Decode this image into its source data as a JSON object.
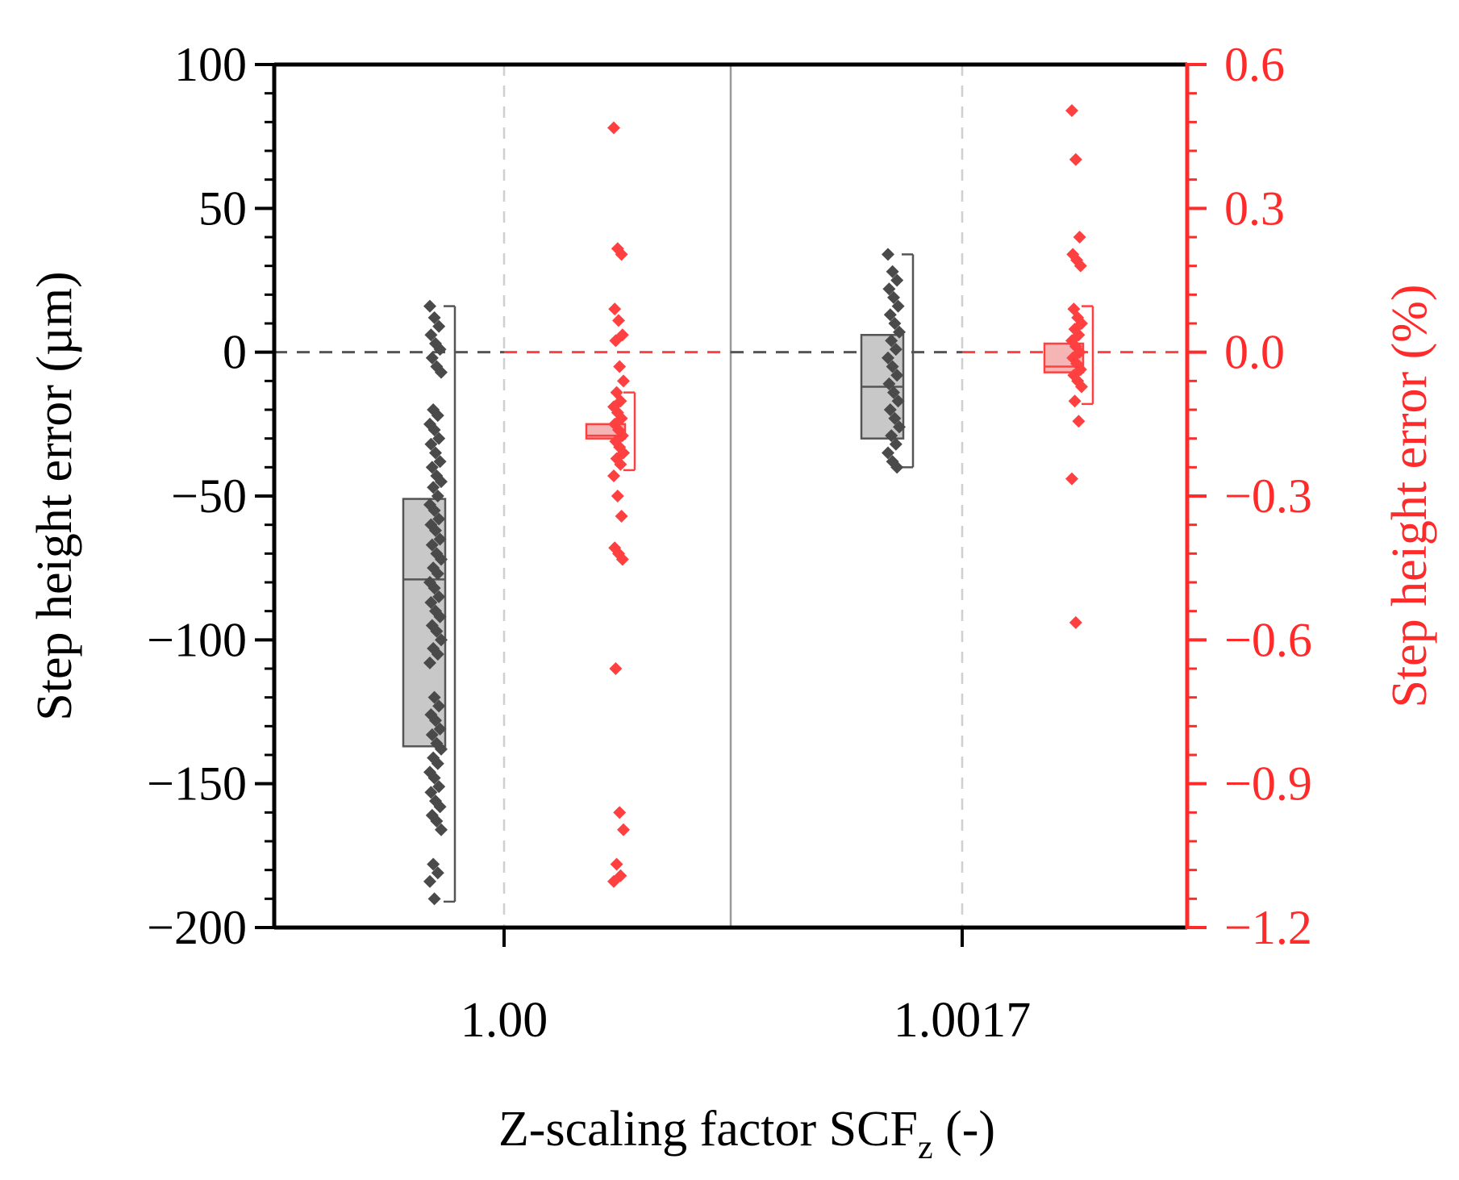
{
  "chart_data": {
    "type": "box-scatter",
    "title": "",
    "xlabel": {
      "main": "Z-scaling factor SCF",
      "sub": "z",
      "suffix": " (-)"
    },
    "ylabel_left": "Step height error (µm)",
    "ylabel_right": "Step height error (%)",
    "categories": [
      "1.00",
      "1.0017"
    ],
    "y_left": {
      "min": -200,
      "max": 100,
      "ticks": [
        100,
        50,
        0,
        -50,
        -100,
        -150,
        -200
      ],
      "tick_labels": [
        "100",
        "50",
        "0",
        "−50",
        "−100",
        "−150",
        "−200"
      ]
    },
    "y_right": {
      "min": -1.2,
      "max": 0.6,
      "ticks": [
        0.6,
        0.3,
        0.0,
        -0.3,
        -0.6,
        -0.9,
        -1.2
      ],
      "tick_labels": [
        "0.6",
        "0.3",
        "0.0",
        "−0.3",
        "−0.6",
        "−0.9",
        "−1.2"
      ]
    },
    "colors": {
      "absolute": "#4a4a4a",
      "absolute_box": "#c8c8c8",
      "relative": "#ff4040",
      "relative_box": "#f5b5b5",
      "axis_right": "#ff2a2a",
      "reference": "#555555"
    },
    "series": [
      {
        "name": "absolute",
        "axis": "left",
        "groups": [
          {
            "category": "1.00",
            "box": {
              "q1": -137,
              "median": -79,
              "q3": -51,
              "whisker_low": -191,
              "whisker_high": 16
            },
            "points": [
              16,
              12,
              9,
              6,
              3,
              1,
              -2,
              -5,
              -7,
              -20,
              -22,
              -25,
              -27,
              -30,
              -32,
              -35,
              -38,
              -40,
              -43,
              -45,
              -47,
              -50,
              -53,
              -55,
              -58,
              -60,
              -62,
              -65,
              -67,
              -70,
              -72,
              -75,
              -77,
              -80,
              -82,
              -85,
              -87,
              -90,
              -92,
              -95,
              -97,
              -100,
              -103,
              -105,
              -108,
              -120,
              -123,
              -126,
              -128,
              -131,
              -133,
              -136,
              -138,
              -141,
              -143,
              -146,
              -148,
              -151,
              -153,
              -156,
              -158,
              -161,
              -163,
              -166,
              -178,
              -181,
              -184,
              -190
            ]
          },
          {
            "category": "1.0017",
            "box": {
              "q1": -30,
              "median": -12,
              "q3": 6,
              "whisker_low": -40,
              "whisker_high": 34
            },
            "points": [
              34,
              28,
              25,
              22,
              19,
              16,
              13,
              10,
              7,
              4,
              1,
              -2,
              -5,
              -8,
              -11,
              -14,
              -17,
              -20,
              -23,
              -26,
              -29,
              -32,
              -35,
              -38,
              -40
            ]
          }
        ]
      },
      {
        "name": "relative",
        "axis": "right",
        "groups": [
          {
            "category": "1.00",
            "box": {
              "q1": -0.18,
              "median": -0.174,
              "q3": -0.15,
              "whisker_low": -0.246,
              "whisker_high": -0.084
            },
            "points": [
              0.468,
              0.216,
              0.204,
              0.09,
              0.066,
              0.036,
              0.024,
              -0.03,
              -0.06,
              -0.084,
              -0.102,
              -0.114,
              -0.126,
              -0.138,
              -0.15,
              -0.162,
              -0.174,
              -0.186,
              -0.198,
              -0.21,
              -0.222,
              -0.234,
              -0.258,
              -0.3,
              -0.342,
              -0.408,
              -0.42,
              -0.432,
              -0.66,
              -0.96,
              -0.996,
              -1.068,
              -1.092,
              -1.104
            ]
          },
          {
            "category": "1.0017",
            "box": {
              "q1": -0.042,
              "median": -0.03,
              "q3": 0.018,
              "whisker_low": -0.108,
              "whisker_high": 0.096
            },
            "points": [
              0.504,
              0.402,
              0.24,
              0.204,
              0.192,
              0.18,
              0.09,
              0.072,
              0.06,
              0.048,
              0.036,
              0.024,
              0.012,
              0.0,
              -0.012,
              -0.024,
              -0.036,
              -0.048,
              -0.06,
              -0.072,
              -0.102,
              -0.144,
              -0.264,
              -0.564
            ]
          }
        ]
      }
    ]
  }
}
